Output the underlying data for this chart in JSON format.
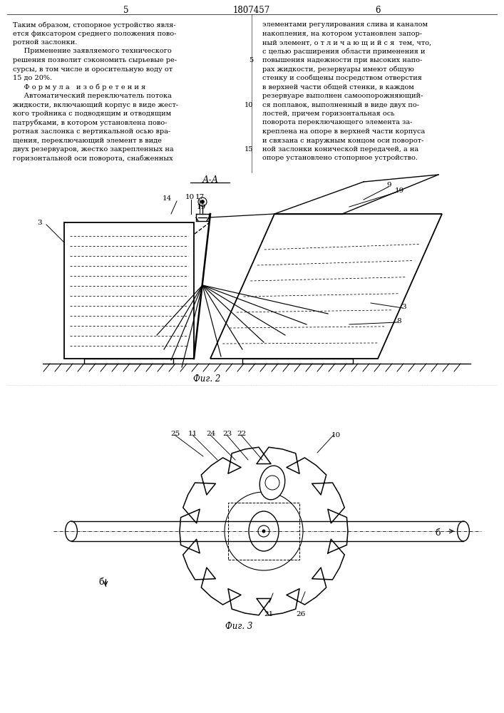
{
  "bg_color": "#ffffff",
  "page_color": "#ffffff",
  "text_color": "#000000",
  "header": {
    "left_num": "5",
    "center_num": "1807457",
    "right_num": "6"
  },
  "left_col_lines": [
    "Таким образом, стопорное устройство явля-",
    "ется фиксатором среднего положения пово-",
    "ротной заслонки.",
    "     Применение заявляемого технического",
    "решения позволит сэкономить сырьевые ре-",
    "сурсы, в том числе и оросительную воду от",
    "15 до 20%.",
    "     Ф о р м у л а   и з о б р е т е н и я",
    "     Автоматический переключатель потока",
    "жидкости, включающий корпус в виде жест-",
    "кого тройника с подводящим и отводящим",
    "патрубками, в котором установлена пово-",
    "ротная заслонка с вертикальной осью вра-",
    "щения, переключающий элемент в виде",
    "двух резервуаров, жестко закрепленных на",
    "горизонтальной оси поворота, снабженных"
  ],
  "right_col_lines": [
    "элементами регулирования слива и каналом",
    "накопления, на котором установлен запор-",
    "ный элемент, о т л и ч а ю щ и й с я  тем, что,",
    "с целью расширения области применения и",
    "повышения надежности при высоких напо-",
    "рах жидкости, резервуары имеют общую",
    "стенку и сообщены посредством отверстия",
    "в верхней части общей стенки, в каждом",
    "резервуаре выполнен самоопорожняющий-",
    "ся поплавок, выполненный в виде двух по-",
    "лостей, причем горизонтальная ось",
    "поворота переключающего элемента за-",
    "креплена на опоре в верхней части корпуса",
    "и связана с наружным концом оси поворот-",
    "ной заслонки конической передачей, а на",
    "опоре установлено стопорное устройство."
  ],
  "line_num_rows": {
    "4": "5",
    "9": "10",
    "14": "15"
  },
  "fig2_caption": "Фиг. 2",
  "fig3_caption": "Фиг. 3"
}
